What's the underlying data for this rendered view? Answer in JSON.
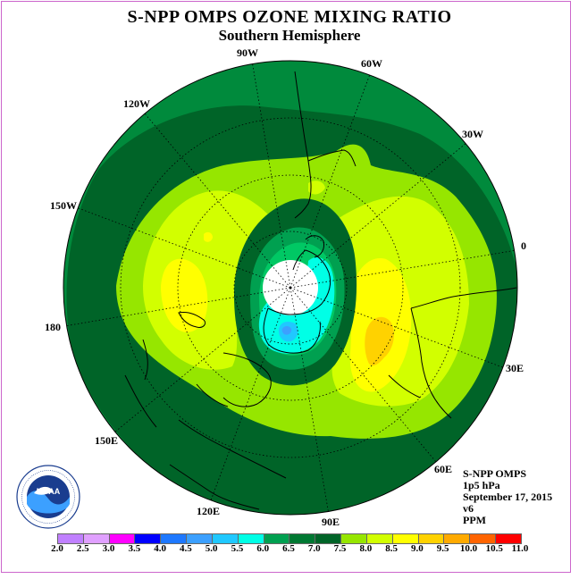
{
  "title": "S-NPP OMPS OZONE MIXING RATIO",
  "subtitle": "Southern Hemisphere",
  "longitude_labels": [
    "90W",
    "60W",
    "30W",
    "0",
    "30E",
    "60E",
    "90E",
    "120E",
    "150E",
    "180",
    "150W",
    "120W"
  ],
  "info": {
    "instrument": "S-NPP OMPS",
    "level": "1p5 hPa",
    "date": "September 17, 2015",
    "version": "v6",
    "units": "PPM"
  },
  "logo_text": "NOAA",
  "logo_ring_text": "NATIONAL OCEANIC AND ATMOSPHERIC ADMINISTRATION · U.S. DEPARTMENT OF COMMERCE",
  "colorbar": {
    "ticks": [
      "2.0",
      "2.5",
      "3.0",
      "3.5",
      "4.0",
      "4.5",
      "5.0",
      "5.5",
      "6.0",
      "6.5",
      "7.0",
      "7.5",
      "8.0",
      "8.5",
      "9.0",
      "9.5",
      "10.0",
      "10.5",
      "11.0"
    ],
    "colors": [
      "#c080ff",
      "#e0a0ff",
      "#ff00ff",
      "#0000ff",
      "#1e78ff",
      "#3ca0ff",
      "#20c8ff",
      "#00ffe6",
      "#00a050",
      "#007832",
      "#006428",
      "#96e600",
      "#d2ff00",
      "#ffff00",
      "#ffd200",
      "#ffaa00",
      "#ff6400",
      "#ff0000",
      "#8b5a2b"
    ]
  },
  "map": {
    "projection": "south-polar stereographic",
    "colors": {
      "outer_ring": "#008a3c",
      "ring_6_5": "#007a32",
      "ring_7_0": "#006428",
      "band_7_5": "#96e600",
      "band_8_0": "#d2ff00",
      "band_8_5": "#ffff00",
      "peak_9_0": "#ffd200",
      "peak_9_5": "#ffaa00",
      "vortex_5_5": "#00ffe6",
      "vortex_5_0": "#20c8ff",
      "vortex_4_5": "#3ca0ff",
      "pole_missing": "#ffffff"
    }
  }
}
